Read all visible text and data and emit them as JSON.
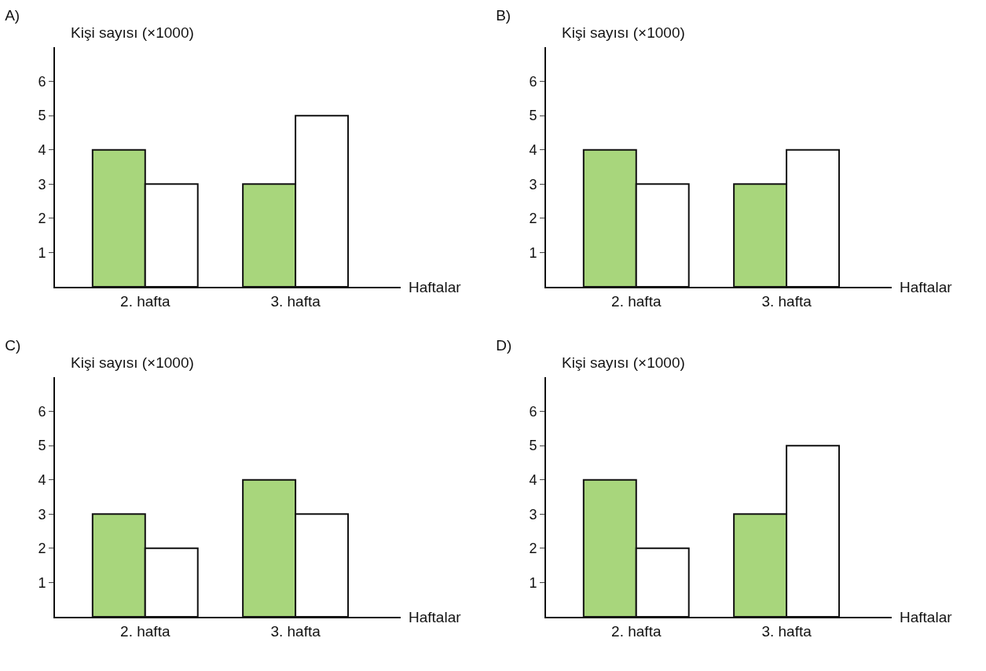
{
  "chart_data": [
    {
      "type": "bar",
      "title": "A)",
      "ylabel": "Kişi sayısı (×1000)",
      "xlabel": "Haftalar",
      "categories": [
        "2. hafta",
        "3. hafta"
      ],
      "series": [
        {
          "color": "#a8d67c",
          "values": [
            4,
            3
          ]
        },
        {
          "color": "#ffffff",
          "values": [
            3,
            5
          ]
        }
      ],
      "ylim": [
        0,
        7
      ],
      "yticks": [
        1,
        2,
        3,
        4,
        5,
        6
      ],
      "grid": false
    },
    {
      "type": "bar",
      "title": "B)",
      "ylabel": "Kişi sayısı (×1000)",
      "xlabel": "Haftalar",
      "categories": [
        "2. hafta",
        "3. hafta"
      ],
      "series": [
        {
          "color": "#a8d67c",
          "values": [
            4,
            3
          ]
        },
        {
          "color": "#ffffff",
          "values": [
            3,
            4
          ]
        }
      ],
      "ylim": [
        0,
        7
      ],
      "yticks": [
        1,
        2,
        3,
        4,
        5,
        6
      ],
      "grid": false
    },
    {
      "type": "bar",
      "title": "C)",
      "ylabel": "Kişi sayısı (×1000)",
      "xlabel": "Haftalar",
      "categories": [
        "2. hafta",
        "3. hafta"
      ],
      "series": [
        {
          "color": "#a8d67c",
          "values": [
            3,
            4
          ]
        },
        {
          "color": "#ffffff",
          "values": [
            2,
            3
          ]
        }
      ],
      "ylim": [
        0,
        7
      ],
      "yticks": [
        1,
        2,
        3,
        4,
        5,
        6
      ],
      "grid": false
    },
    {
      "type": "bar",
      "title": "D)",
      "ylabel": "Kişi sayısı (×1000)",
      "xlabel": "Haftalar",
      "categories": [
        "2. hafta",
        "3. hafta"
      ],
      "series": [
        {
          "color": "#a8d67c",
          "values": [
            4,
            3
          ]
        },
        {
          "color": "#ffffff",
          "values": [
            2,
            5
          ]
        }
      ],
      "ylim": [
        0,
        7
      ],
      "yticks": [
        1,
        2,
        3,
        4,
        5,
        6
      ],
      "grid": false
    }
  ]
}
